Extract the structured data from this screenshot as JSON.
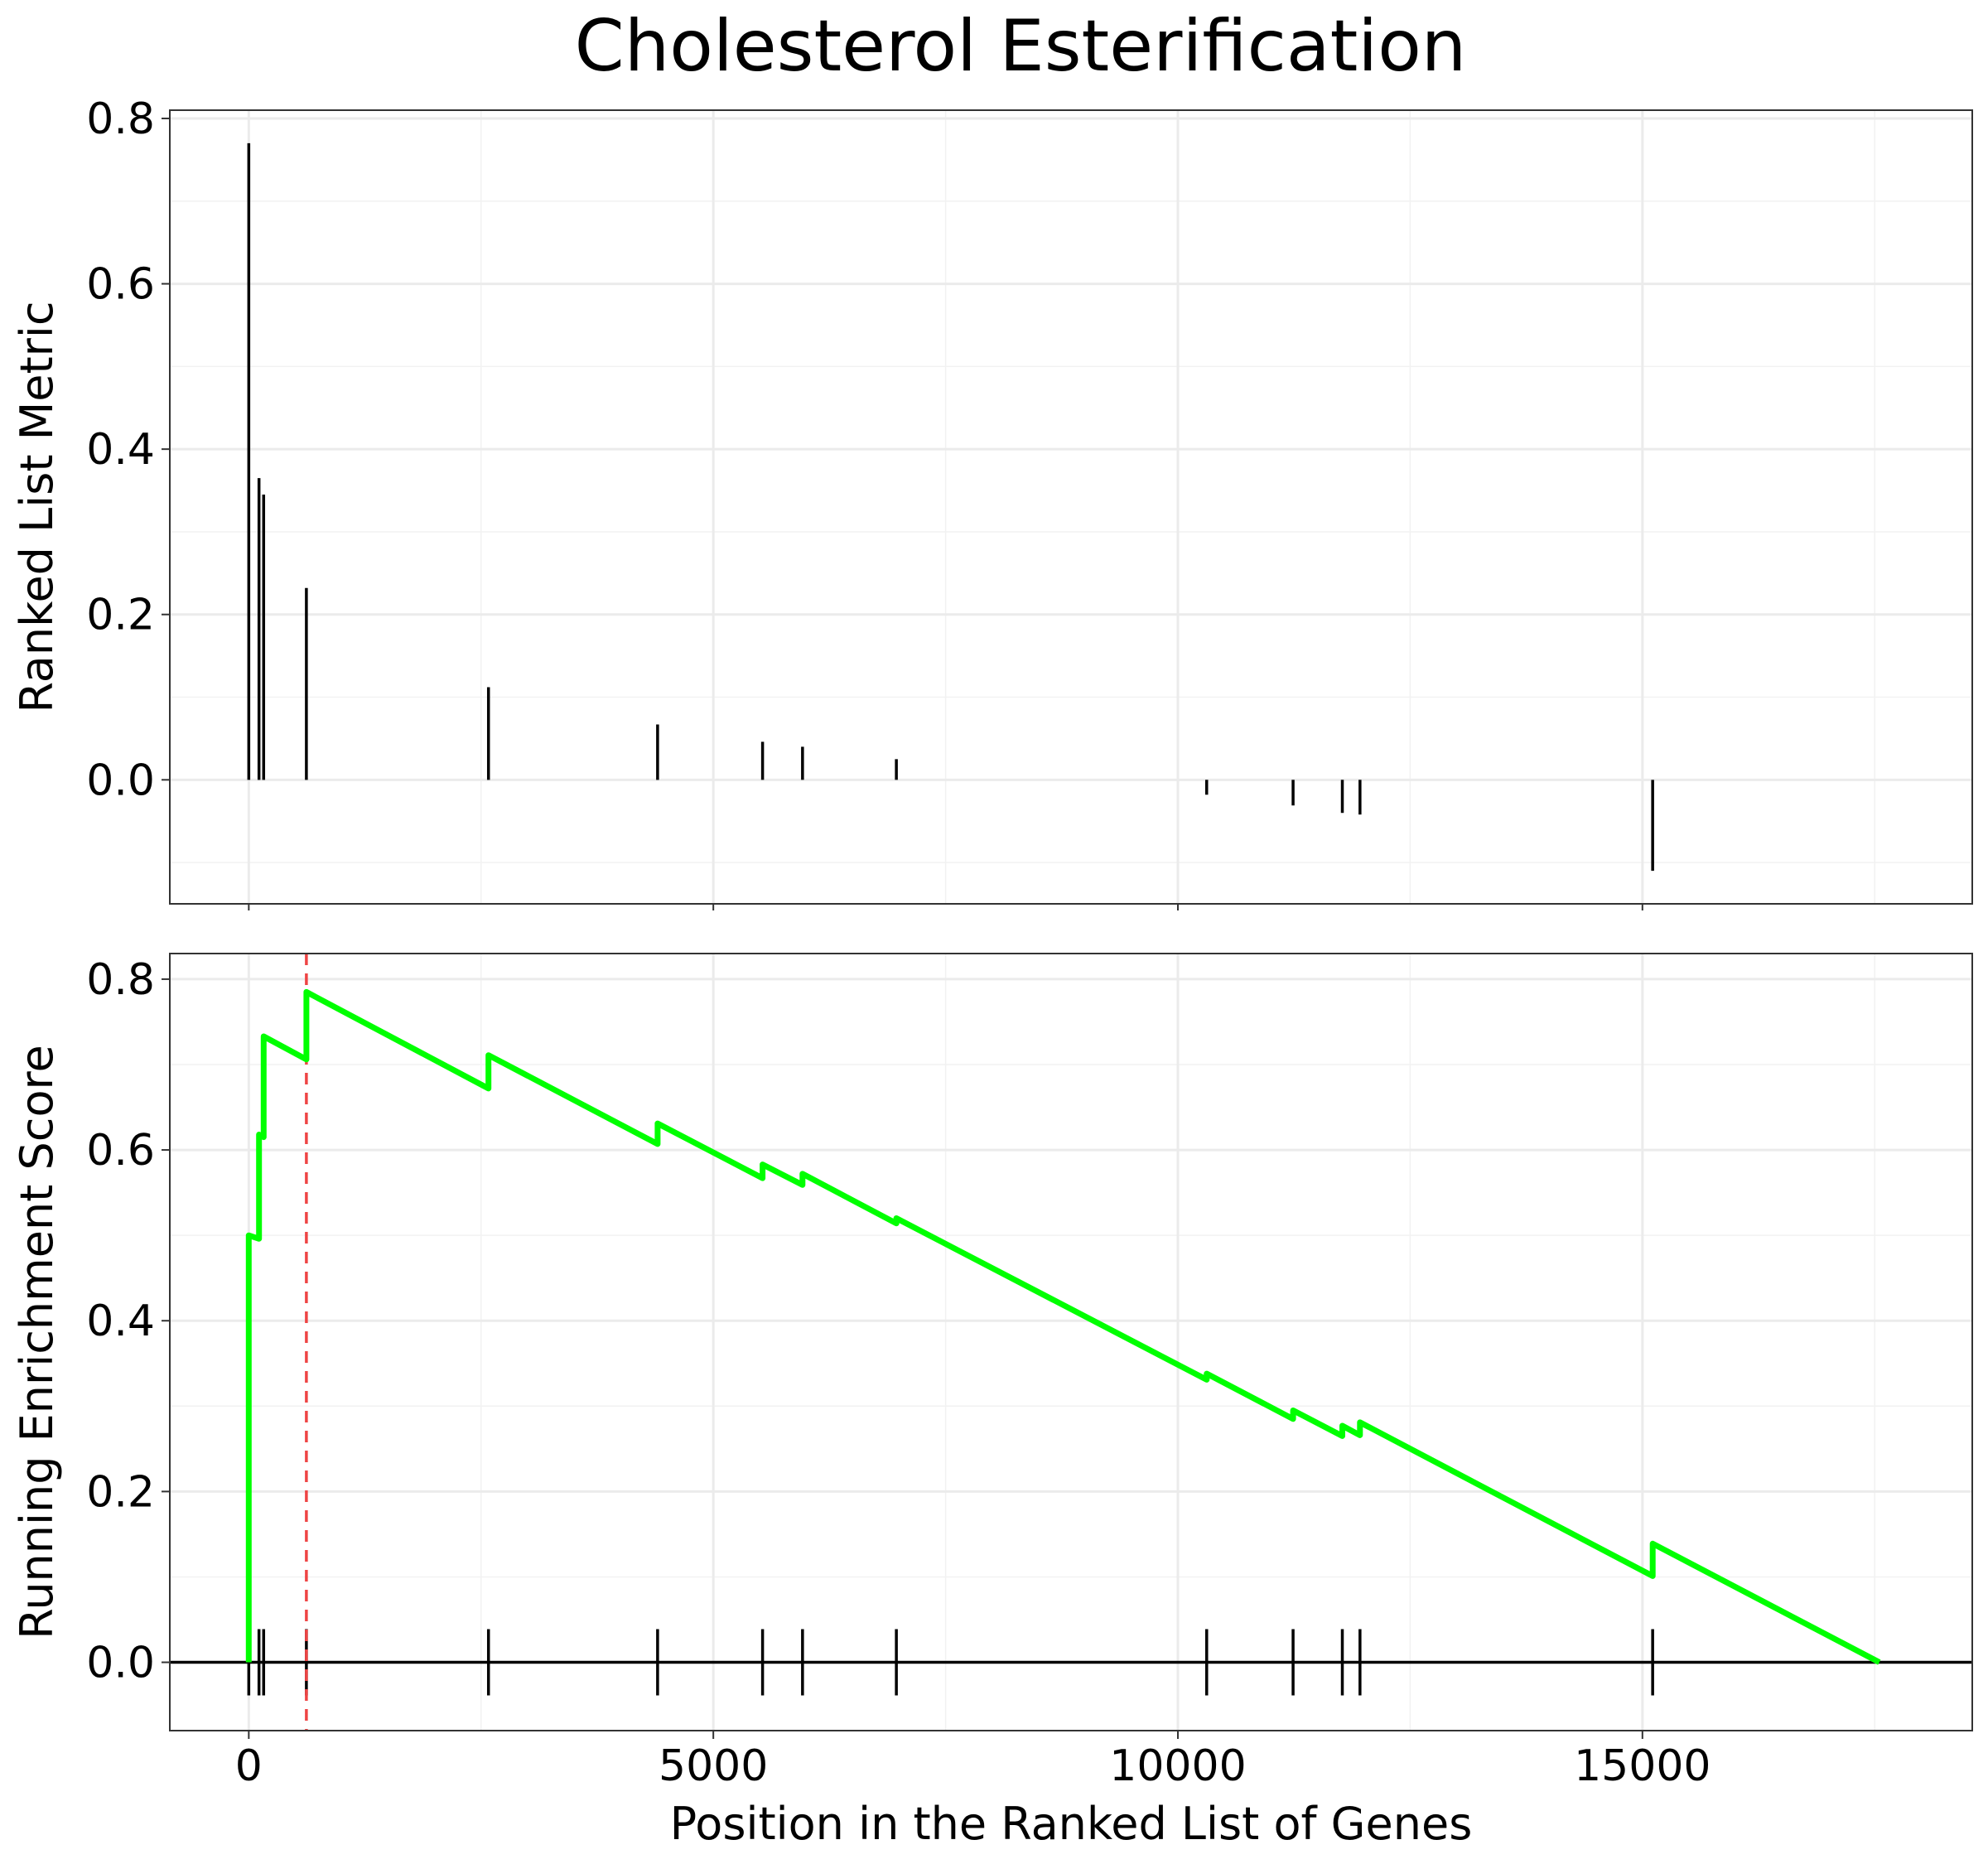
{
  "chart_data": {
    "type": "line",
    "title": "Cholesterol Esterification",
    "xlabel": "Position in the Ranked List of Genes",
    "xlim": [
      -850,
      18550
    ],
    "x_ticks": [
      0,
      5000,
      10000,
      15000
    ],
    "x_tick_labels": [
      "0",
      "5000",
      "10000",
      "15000"
    ],
    "hit_positions": [
      0,
      110,
      160,
      620,
      2580,
      4400,
      5530,
      5960,
      6970,
      10310,
      11240,
      11770,
      11960,
      15110
    ],
    "panels": [
      {
        "name": "ranked-metric",
        "ylabel": "Ranked List Metric",
        "ylim": [
          -0.15,
          0.81
        ],
        "y_ticks": [
          0.0,
          0.2,
          0.4,
          0.6,
          0.8
        ],
        "y_tick_labels": [
          "0.0",
          "0.2",
          "0.4",
          "0.6",
          "0.8"
        ],
        "metric_values": [
          0.77,
          0.365,
          0.345,
          0.232,
          0.112,
          0.067,
          0.046,
          0.04,
          0.025,
          -0.018,
          -0.031,
          -0.04,
          -0.042,
          -0.11
        ]
      },
      {
        "name": "running-es",
        "ylabel": "Running Enrichment Score",
        "ylim": [
          -0.08,
          0.83
        ],
        "y_ticks": [
          0.0,
          0.2,
          0.4,
          0.6,
          0.8
        ],
        "y_tick_labels": [
          "0.0",
          "0.2",
          "0.4",
          "0.6",
          "0.8"
        ],
        "line_color": "#00ff00",
        "es_peak_position": 620,
        "es_peak_line_color": "#ee4444",
        "zero_line_color": "#000000",
        "running_es": [
          [
            0,
            0.0
          ],
          [
            0,
            0.5
          ],
          [
            110,
            0.496
          ],
          [
            110,
            0.618
          ],
          [
            160,
            0.615
          ],
          [
            160,
            0.733
          ],
          [
            620,
            0.706
          ],
          [
            620,
            0.785
          ],
          [
            2580,
            0.672
          ],
          [
            2580,
            0.711
          ],
          [
            4400,
            0.607
          ],
          [
            4400,
            0.631
          ],
          [
            5530,
            0.567
          ],
          [
            5530,
            0.583
          ],
          [
            5960,
            0.559
          ],
          [
            5960,
            0.572
          ],
          [
            6970,
            0.514
          ],
          [
            6970,
            0.52
          ],
          [
            10310,
            0.331
          ],
          [
            10310,
            0.338
          ],
          [
            11240,
            0.285
          ],
          [
            11240,
            0.295
          ],
          [
            11770,
            0.265
          ],
          [
            11770,
            0.277
          ],
          [
            11960,
            0.266
          ],
          [
            11960,
            0.281
          ],
          [
            15110,
            0.101
          ],
          [
            15110,
            0.139
          ],
          [
            17550,
            0.0
          ]
        ]
      }
    ]
  }
}
